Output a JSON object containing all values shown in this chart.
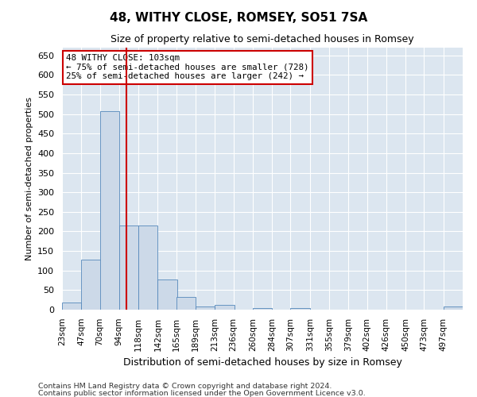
{
  "title": "48, WITHY CLOSE, ROMSEY, SO51 7SA",
  "subtitle": "Size of property relative to semi-detached houses in Romsey",
  "xlabel": "Distribution of semi-detached houses by size in Romsey",
  "ylabel": "Number of semi-detached properties",
  "footnote1": "Contains HM Land Registry data © Crown copyright and database right 2024.",
  "footnote2": "Contains public sector information licensed under the Open Government Licence v3.0.",
  "bar_color": "#ccd9e8",
  "bar_edge_color": "#5588bb",
  "bg_color": "#dce6f0",
  "grid_color": "#ffffff",
  "fig_bg_color": "#ffffff",
  "red_line_x": 103,
  "annotation_line1": "48 WITHY CLOSE: 103sqm",
  "annotation_line2": "← 75% of semi-detached houses are smaller (728)",
  "annotation_line3": "25% of semi-detached houses are larger (242) →",
  "annotation_box_color": "#ffffff",
  "annotation_box_edge": "#cc0000",
  "categories": [
    "23sqm",
    "47sqm",
    "70sqm",
    "94sqm",
    "118sqm",
    "142sqm",
    "165sqm",
    "189sqm",
    "213sqm",
    "236sqm",
    "260sqm",
    "284sqm",
    "307sqm",
    "331sqm",
    "355sqm",
    "379sqm",
    "402sqm",
    "426sqm",
    "450sqm",
    "473sqm",
    "497sqm"
  ],
  "bin_edges": [
    23,
    47,
    70,
    94,
    118,
    142,
    165,
    189,
    213,
    236,
    260,
    284,
    307,
    331,
    355,
    379,
    402,
    426,
    450,
    473,
    497
  ],
  "bin_width": 24,
  "values": [
    18,
    127,
    508,
    215,
    215,
    78,
    32,
    8,
    12,
    0,
    5,
    0,
    5,
    0,
    0,
    0,
    0,
    0,
    0,
    0,
    8
  ],
  "ylim": [
    0,
    670
  ],
  "yticks": [
    0,
    50,
    100,
    150,
    200,
    250,
    300,
    350,
    400,
    450,
    500,
    550,
    600,
    650
  ]
}
